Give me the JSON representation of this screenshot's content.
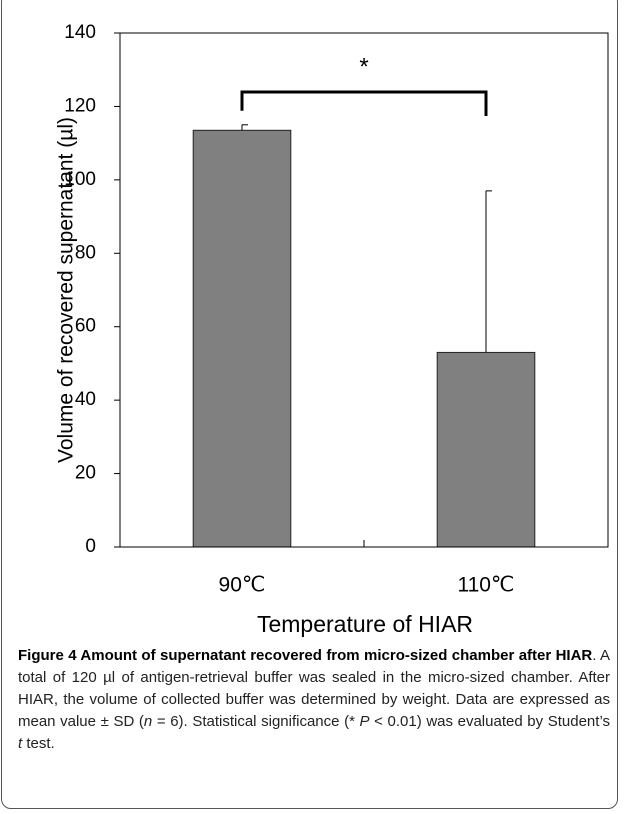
{
  "chart_data": {
    "type": "bar",
    "ylabel": "Volume of recovered supernatant (µl)",
    "xlabel": "Temperature of HIAR",
    "categories": [
      "90℃",
      "110℃"
    ],
    "values": [
      113.5,
      53
    ],
    "errors": [
      1.5,
      44
    ],
    "color": "#808080",
    "ylim": [
      0,
      140
    ],
    "yticks": [
      0,
      20,
      40,
      60,
      80,
      100,
      120,
      140
    ],
    "grid": false,
    "annotation": "*",
    "caption": {
      "title": "Figure 4 Amount of supernatant recovered from micro-sized chamber after HIAR",
      "body": [
        ". A total of 120 µl of antigen-retrieval buffer was sealed in the micro-sized chamber. After HIAR, the volume of collected buffer was determined by weight. Data are expressed as mean value ± SD (",
        "n",
        " = 6). Statistical significance (* ",
        "P",
        " < 0.01) was evaluated by Student’s ",
        "t",
        " test."
      ]
    }
  }
}
